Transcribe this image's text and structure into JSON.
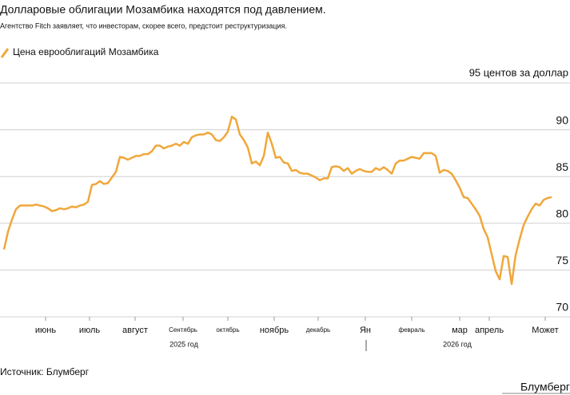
{
  "chart_data": {
    "type": "line",
    "title": "Долларовые облигации Мозамбика находятся под давлением.",
    "subtitle": "Агентство Fitch заявляет, что инвесторам, скорее всего, предстоит реструктуризация.",
    "source": "Источник: Блумберг",
    "brand": "Блумберг",
    "year_labels": [
      "2025 год",
      "2026 год"
    ],
    "series": [
      {
        "name": "Цена еврооблигаций Мозамбика",
        "color": "#f0a73a",
        "values": [
          77.2,
          79.1,
          80.4,
          81.5,
          81.9,
          81.9,
          81.9,
          81.9,
          82.0,
          81.9,
          81.8,
          81.6,
          81.3,
          81.4,
          81.6,
          81.5,
          81.6,
          81.8,
          81.7,
          81.9,
          82.0,
          82.3,
          84.1,
          84.2,
          84.5,
          84.2,
          84.3,
          84.9,
          85.5,
          87.1,
          87.0,
          86.8,
          87.0,
          87.2,
          87.2,
          87.4,
          87.4,
          87.7,
          88.3,
          88.3,
          88.0,
          88.2,
          88.3,
          88.5,
          88.3,
          88.7,
          88.5,
          89.2,
          89.4,
          89.5,
          89.5,
          89.7,
          89.5,
          88.9,
          88.8,
          89.2,
          89.8,
          91.4,
          91.1,
          89.5,
          88.9,
          88.1,
          86.4,
          86.6,
          86.2,
          87.2,
          89.7,
          88.5,
          87.0,
          87.1,
          86.5,
          86.4,
          85.6,
          85.7,
          85.4,
          85.3,
          85.3,
          85.1,
          84.9,
          84.6,
          84.8,
          84.8,
          86.0,
          86.1,
          86.0,
          85.6,
          85.9,
          85.3,
          85.6,
          85.8,
          85.6,
          85.5,
          85.5,
          85.9,
          85.7,
          86.0,
          85.7,
          85.3,
          86.4,
          86.7,
          86.7,
          86.9,
          87.1,
          87.0,
          86.9,
          87.5,
          87.5,
          87.5,
          87.2,
          85.4,
          85.7,
          85.6,
          85.3,
          84.6,
          83.8,
          82.8,
          82.7,
          82.1,
          81.5,
          80.8,
          79.4,
          78.5,
          76.7,
          74.9,
          74.0,
          76.5,
          76.4,
          73.5,
          76.6,
          78.3,
          79.8,
          80.7,
          81.5,
          82.1,
          81.9,
          82.5,
          82.7,
          82.8
        ]
      }
    ],
    "xlim": [
      0,
      137
    ],
    "xticks": [
      {
        "value": 10.4,
        "label": "июнь"
      },
      {
        "value": 21.4,
        "label": "июль"
      },
      {
        "value": 32.8,
        "label": "август"
      },
      {
        "value": 44.8,
        "label": "Сентябрь"
      },
      {
        "value": 56,
        "label": "октябрь"
      },
      {
        "value": 67.6,
        "label": "ноябрь"
      },
      {
        "value": 78.6,
        "label": "декабрь"
      },
      {
        "value": 90.4,
        "label": "Ян"
      },
      {
        "value": 102,
        "label": "февраль"
      },
      {
        "value": 114,
        "label": "мар"
      },
      {
        "value": 121.4,
        "label": "апрель"
      },
      {
        "value": 135.4,
        "label": "Может"
      }
    ],
    "ylim": [
      70,
      95
    ],
    "yticks": [
      70,
      75,
      80,
      85,
      90,
      {
        "value": 95,
        "label": "95 центов за доллар"
      }
    ],
    "grid": true
  }
}
